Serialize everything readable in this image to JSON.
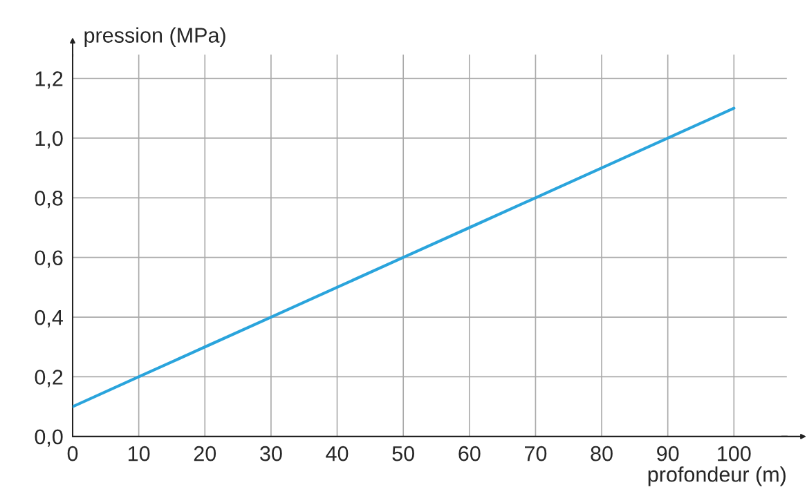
{
  "chart_data": {
    "type": "line",
    "xlabel": "profondeur (m)",
    "ylabel": "pression (MPa)",
    "x": [
      0,
      10,
      20,
      30,
      40,
      50,
      60,
      70,
      80,
      90,
      100
    ],
    "series": [
      {
        "color": "#2aa4dc",
        "values": [
          0.1,
          0.2,
          0.3,
          0.4,
          0.5,
          0.6,
          0.7,
          0.8,
          0.9,
          1.0,
          1.1
        ]
      }
    ],
    "xlim": [
      0,
      108
    ],
    "xticks": [
      0,
      10,
      20,
      30,
      40,
      50,
      60,
      70,
      80,
      90,
      100
    ],
    "ylim": [
      0,
      1.28
    ],
    "yticks": [
      {
        "value": 0,
        "label": "0,0"
      },
      {
        "value": 0.2,
        "label": "0,2"
      },
      {
        "value": 0.4,
        "label": "0,4"
      },
      {
        "value": 0.6,
        "label": "0,6"
      },
      {
        "value": 0.8,
        "label": "0,8"
      },
      {
        "value": 1.0,
        "label": "1,0"
      },
      {
        "value": 1.2,
        "label": "1,2"
      }
    ],
    "grid": true,
    "marker": "none",
    "line_style": "solid"
  }
}
